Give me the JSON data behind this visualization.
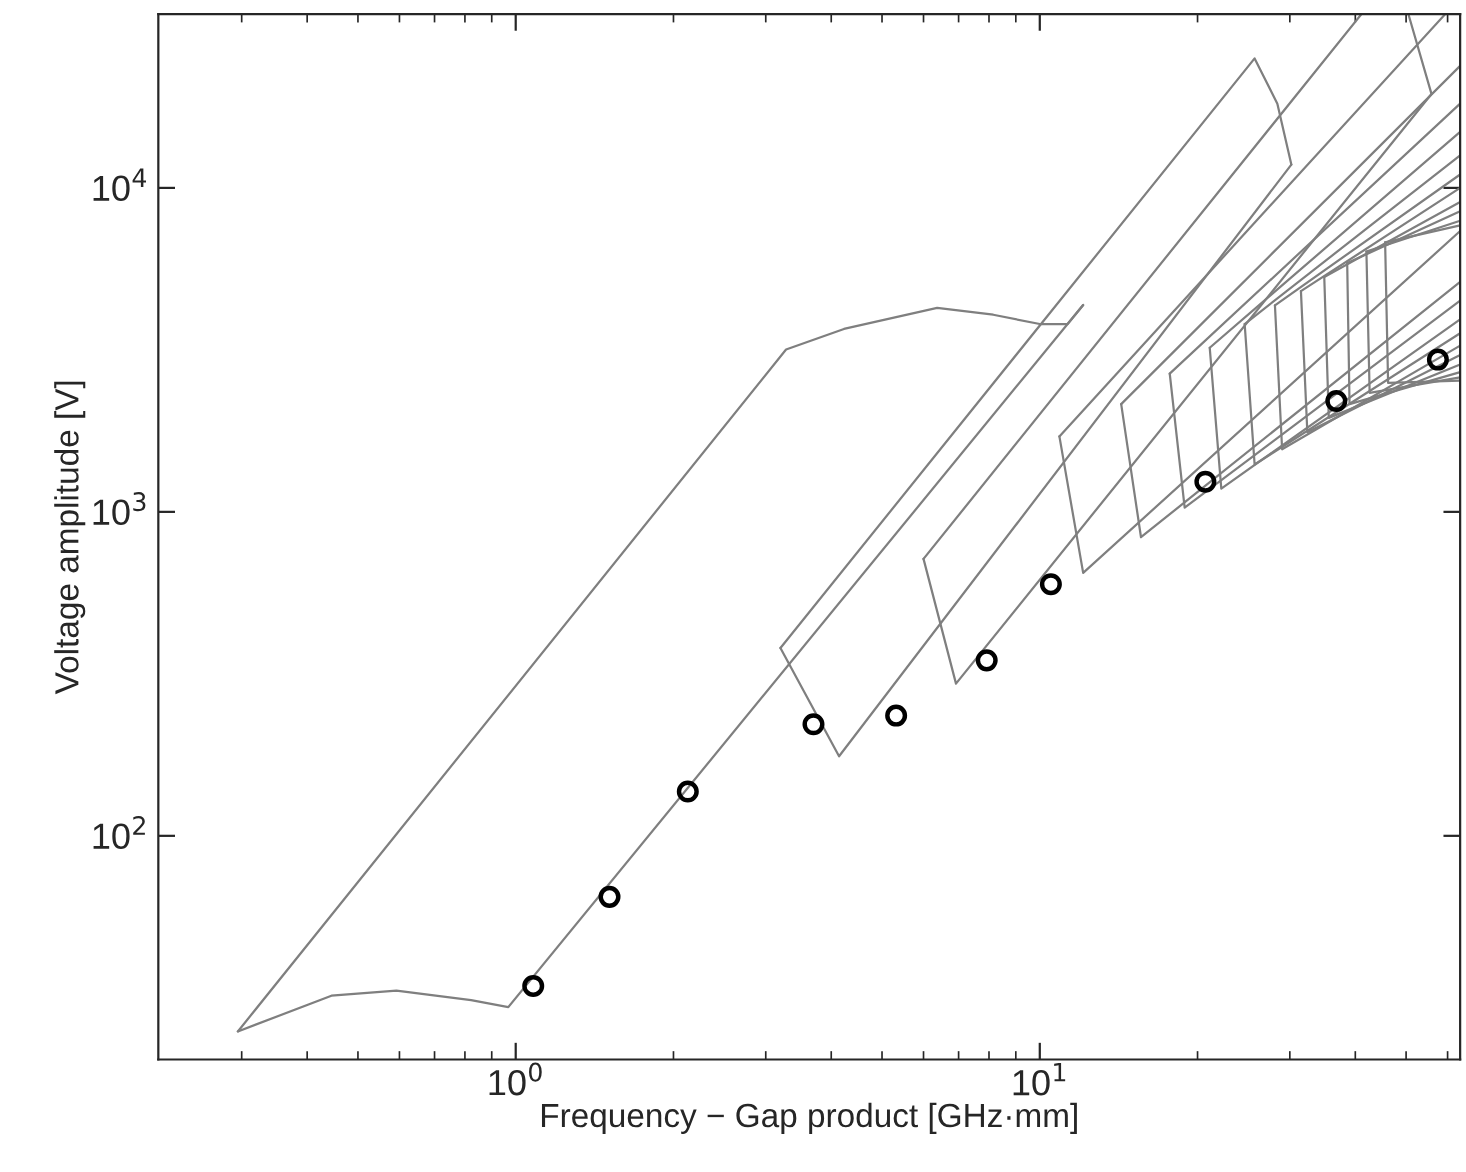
{
  "chart_data": {
    "type": "line",
    "xlabel": "Frequency − Gap product [GHz·mm]",
    "ylabel": "Voltage amplitude [V]",
    "log": "xy",
    "grid": false,
    "legend": false,
    "xlim": [
      0.208,
      63.4
    ],
    "ylim": [
      20.4,
      34400
    ],
    "xticks": [
      {
        "value": 1,
        "label": "10$^{0}$"
      },
      {
        "value": 10,
        "label": "10$^{1}$"
      }
    ],
    "yticks": [
      {
        "value": 100,
        "label": "10$^{2}$"
      },
      {
        "value": 1000,
        "label": "10$^{3}$"
      },
      {
        "value": 10000,
        "label": "10$^{4}$"
      }
    ],
    "series": [
      {
        "color": "#7f7f7f",
        "x": [
          0.295,
          3.28,
          4.23,
          6.37,
          8.15,
          10.0,
          11.3,
          12.1
        ],
        "values": [
          24.9,
          3170,
          3670,
          4260,
          4060,
          3800,
          3800,
          4350
        ]
      },
      {
        "color": "#7f7f7f",
        "x": [
          0.295,
          0.445,
          0.592,
          0.822,
          0.968,
          12.1
        ],
        "values": [
          24.9,
          32.1,
          33.3,
          31.1,
          29.6,
          4350
        ]
      },
      {
        "color": "#7f7f7f",
        "x": [
          3.2,
          25.7,
          28.4,
          30.2
        ],
        "values": [
          380,
          25100,
          18200,
          11800
        ]
      },
      {
        "color": "#7f7f7f",
        "x": [
          3.2,
          4.14,
          30.2
        ],
        "values": [
          380,
          176,
          11800
        ]
      },
      {
        "color": "#7f7f7f",
        "x": [
          6.0,
          41.1
        ],
        "values": [
          716,
          34400
        ]
      },
      {
        "color": "#7f7f7f",
        "x": [
          6.0,
          6.92,
          55.9
        ],
        "values": [
          716,
          295,
          19500
        ]
      },
      {
        "color": "#7f7f7f",
        "x": [
          50.5,
          55.9
        ],
        "values": [
          34400,
          19500
        ]
      },
      {
        "color": "#7f7f7f",
        "x": [
          10.9,
          59.4
        ],
        "values": [
          1710,
          34400
        ]
      },
      {
        "color": "#7f7f7f",
        "x": [
          10.9,
          12.1,
          63.4
        ],
        "values": [
          1710,
          648,
          7360
        ]
      },
      {
        "color": "#7f7f7f",
        "x": [
          14.3,
          63.4
        ],
        "values": [
          2150,
          23800
        ]
      },
      {
        "color": "#7f7f7f",
        "x": [
          14.3,
          15.6,
          63.4
        ],
        "values": [
          2150,
          835,
          5130
        ]
      },
      {
        "color": "#7f7f7f",
        "x": [
          17.7,
          63.4
        ],
        "values": [
          2670,
          18200
        ]
      },
      {
        "color": "#7f7f7f",
        "x": [
          17.7,
          18.9,
          63.4
        ],
        "values": [
          2670,
          1030,
          4490
        ]
      },
      {
        "color": "#7f7f7f",
        "x": [
          21.1,
          63.4
        ],
        "values": [
          3210,
          14900
        ]
      },
      {
        "color": "#7f7f7f",
        "x": [
          21.1,
          22.2,
          63.4
        ],
        "values": [
          3210,
          1180,
          3930
        ]
      },
      {
        "color": "#7f7f7f",
        "x": [
          24.6,
          63.4
        ],
        "values": [
          3800,
          12600
        ]
      },
      {
        "color": "#7f7f7f",
        "x": [
          24.6,
          25.7,
          63.4
        ],
        "values": [
          3800,
          1400,
          3560
        ]
      },
      {
        "color": "#7f7f7f",
        "x": [
          28.1,
          63.4
        ],
        "values": [
          4340,
          11000
        ]
      },
      {
        "color": "#7f7f7f",
        "x": [
          28.1,
          29.0,
          63.4
        ],
        "values": [
          4340,
          1560,
          3260
        ]
      },
      {
        "color": "#7f7f7f",
        "x": [
          31.5,
          63.4
        ],
        "values": [
          4800,
          10000
        ]
      },
      {
        "color": "#7f7f7f",
        "x": [
          31.5,
          32.4,
          63.4
        ],
        "values": [
          4800,
          1760,
          3050
        ]
      },
      {
        "color": "#7f7f7f",
        "x": [
          34.9,
          63.4
        ],
        "values": [
          5310,
          9050
        ]
      },
      {
        "color": "#7f7f7f",
        "x": [
          34.9,
          35.6,
          63.4
        ],
        "values": [
          5310,
          1950,
          2850
        ]
      },
      {
        "color": "#7f7f7f",
        "x": [
          38.6,
          63.4
        ],
        "values": [
          5860,
          8470
        ]
      },
      {
        "color": "#7f7f7f",
        "x": [
          38.6,
          39.0,
          63.4
        ],
        "values": [
          5860,
          2150,
          2700
        ]
      },
      {
        "color": "#7f7f7f",
        "x": [
          42.0,
          63.4
        ],
        "values": [
          6360,
          7920
        ]
      },
      {
        "color": "#7f7f7f",
        "x": [
          42.0,
          42.6,
          63.4
        ],
        "values": [
          6360,
          2330,
          2600
        ]
      },
      {
        "color": "#7f7f7f",
        "x": [
          45.6,
          63.4
        ],
        "values": [
          6790,
          7660
        ]
      },
      {
        "color": "#7f7f7f",
        "x": [
          45.6,
          46.2,
          63.4
        ],
        "values": [
          6790,
          2500,
          2540
        ]
      },
      {
        "type": "scatter",
        "color": "#000000",
        "marker": "circle",
        "x": [
          1.08,
          1.51,
          2.13,
          3.7,
          5.32,
          7.92,
          10.5,
          20.7,
          36.8,
          57.5
        ],
        "values": [
          34.4,
          64.8,
          137,
          221,
          235,
          348,
          598,
          1239,
          2198,
          2951
        ]
      }
    ]
  }
}
